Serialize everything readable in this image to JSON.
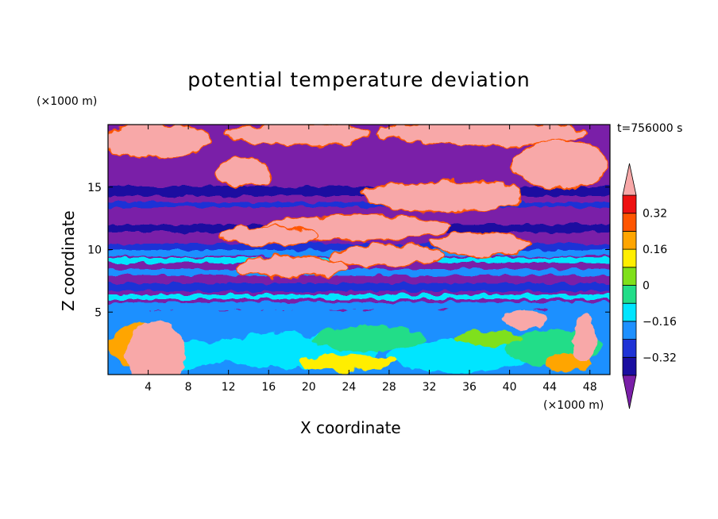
{
  "chart_data": {
    "type": "heatmap",
    "title": "potential temperature deviation",
    "xlabel": "X coordinate",
    "ylabel": "Z coordinate",
    "x_unit_label": "(×1000 m)",
    "y_unit_label": "(×1000 m)",
    "time_label": "t=756000 s",
    "xlim": [
      0,
      50
    ],
    "ylim": [
      0,
      20
    ],
    "x_ticks": [
      "4",
      "8",
      "12",
      "16",
      "20",
      "24",
      "28",
      "32",
      "36",
      "40",
      "44",
      "48"
    ],
    "y_ticks": [
      "5",
      "10",
      "15"
    ],
    "colorbar": {
      "levels": [
        -0.4,
        -0.32,
        -0.24,
        -0.16,
        -0.08,
        0,
        0.08,
        0.16,
        0.24,
        0.32,
        0.4
      ],
      "labels": [
        "0.32",
        "0.16",
        "0",
        "−0.16",
        "−0.32"
      ],
      "colors": [
        "#7a1fa8",
        "#1a0ea0",
        "#1f33d6",
        "#1e90ff",
        "#00e5ff",
        "#22dd88",
        "#7fe01a",
        "#ffee00",
        "#ffa500",
        "#ff5500",
        "#ee1111",
        "#f8a8a8"
      ]
    }
  }
}
